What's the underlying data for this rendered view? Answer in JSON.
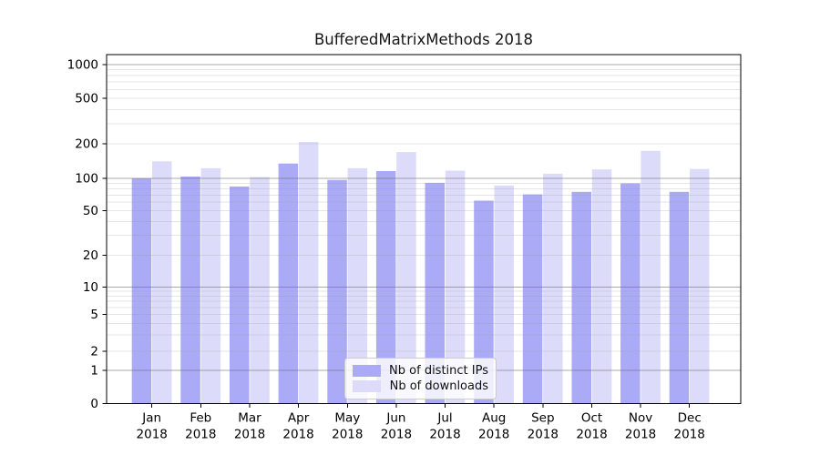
{
  "chart_data": {
    "type": "bar",
    "title": "BufferedMatrixMethods 2018",
    "categories": [
      "Jan 2018",
      "Feb 2018",
      "Mar 2018",
      "Apr 2018",
      "May 2018",
      "Jun 2018",
      "Jul 2018",
      "Aug 2018",
      "Sep 2018",
      "Oct 2018",
      "Nov 2018",
      "Dec 2018"
    ],
    "series": [
      {
        "name": "Nb of distinct IPs",
        "color": "#aaaaf6",
        "values": [
          100,
          104,
          84,
          135,
          97,
          116,
          91,
          62,
          71,
          75,
          90,
          75
        ]
      },
      {
        "name": "Nb of downloads",
        "color": "#dcdcfa",
        "values": [
          141,
          123,
          103,
          208,
          123,
          170,
          117,
          86,
          110,
          120,
          174,
          121
        ]
      }
    ],
    "yticks": [
      0,
      1,
      2,
      5,
      10,
      20,
      50,
      100,
      200,
      500,
      1000
    ],
    "ylim": [
      0,
      1100
    ],
    "yscale": "symlog",
    "xlabel": "",
    "ylabel": "",
    "grid": true,
    "legend_position": "inside lower center"
  }
}
